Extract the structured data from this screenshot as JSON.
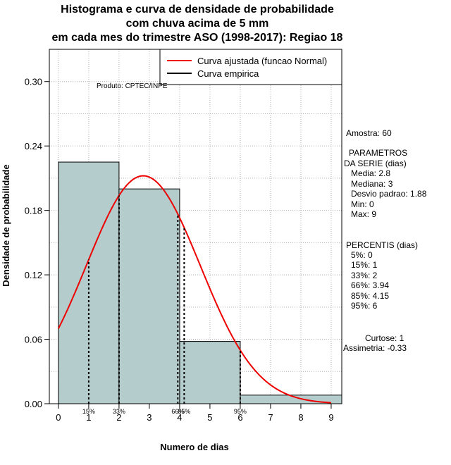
{
  "title_lines": [
    "Histograma e curva de densidade de probabilidade",
    "com chuva acima de 5 mm",
    "em cada mes do trimestre ASO (1998-2017): Regiao 18"
  ],
  "credit": "Produto: CPTEC/INPE",
  "legend": {
    "fitted": "Curva ajustada (funcao Normal)",
    "empirical": "Curva empirica"
  },
  "stats": {
    "amostra": "Amostra: 60",
    "params_title1": "PARAMETROS",
    "params_title2": "DA SERIE (dias)",
    "media": "Media: 2.8",
    "mediana": "Mediana: 3",
    "desvio": "Desvio padrao: 1.88",
    "min": "Min: 0",
    "max": "Max: 9",
    "perc_title": "PERCENTIS (dias)",
    "p5": "5%: 0",
    "p15": "15%: 1",
    "p33": "33%: 2",
    "p66": "66%: 3.94",
    "p85": "85%: 4.15",
    "p95": "95%: 6",
    "curtose": "Curtose: 1",
    "assimetria": "Assimetria: -0.33"
  },
  "colors": {
    "bar_fill": "#b4cccc",
    "curve": "#ee0000",
    "grid": "#b0b0b0"
  },
  "chart_data": {
    "type": "histogram",
    "title": "Histograma e curva de densidade de probabilidade com chuva acima de 5 mm em cada mes do trimestre ASO (1998-2017): Regiao 18",
    "xlabel": "Numero de dias",
    "ylabel": "Densidade de probabilidade",
    "xlim": [
      -0.3,
      9.35
    ],
    "ylim": [
      0,
      0.33
    ],
    "x_ticks": [
      0,
      1,
      2,
      3,
      4,
      5,
      6,
      7,
      8,
      9
    ],
    "y_ticks": [
      0,
      0.06,
      0.12,
      0.18,
      0.24,
      0.3
    ],
    "y_tick_labels": [
      "0.00",
      "0.06",
      "0.12",
      "0.18",
      "0.24",
      "0.30"
    ],
    "bins": [
      {
        "from": 0,
        "to": 2,
        "density": 0.225
      },
      {
        "from": 2,
        "to": 4,
        "density": 0.2
      },
      {
        "from": 4,
        "to": 6,
        "density": 0.058
      },
      {
        "from": 6,
        "to": 9.35,
        "density": 0.008
      }
    ],
    "normal_fit": {
      "mean": 2.8,
      "sd": 1.88,
      "x_from": 0,
      "x_to": 9
    },
    "percentile_lines": [
      {
        "x": 1,
        "label": "15%"
      },
      {
        "x": 2,
        "label": "33%"
      },
      {
        "x": 3.94,
        "label": "66%"
      },
      {
        "x": 4.15,
        "label": "85%"
      },
      {
        "x": 6,
        "label": "95%"
      }
    ]
  }
}
